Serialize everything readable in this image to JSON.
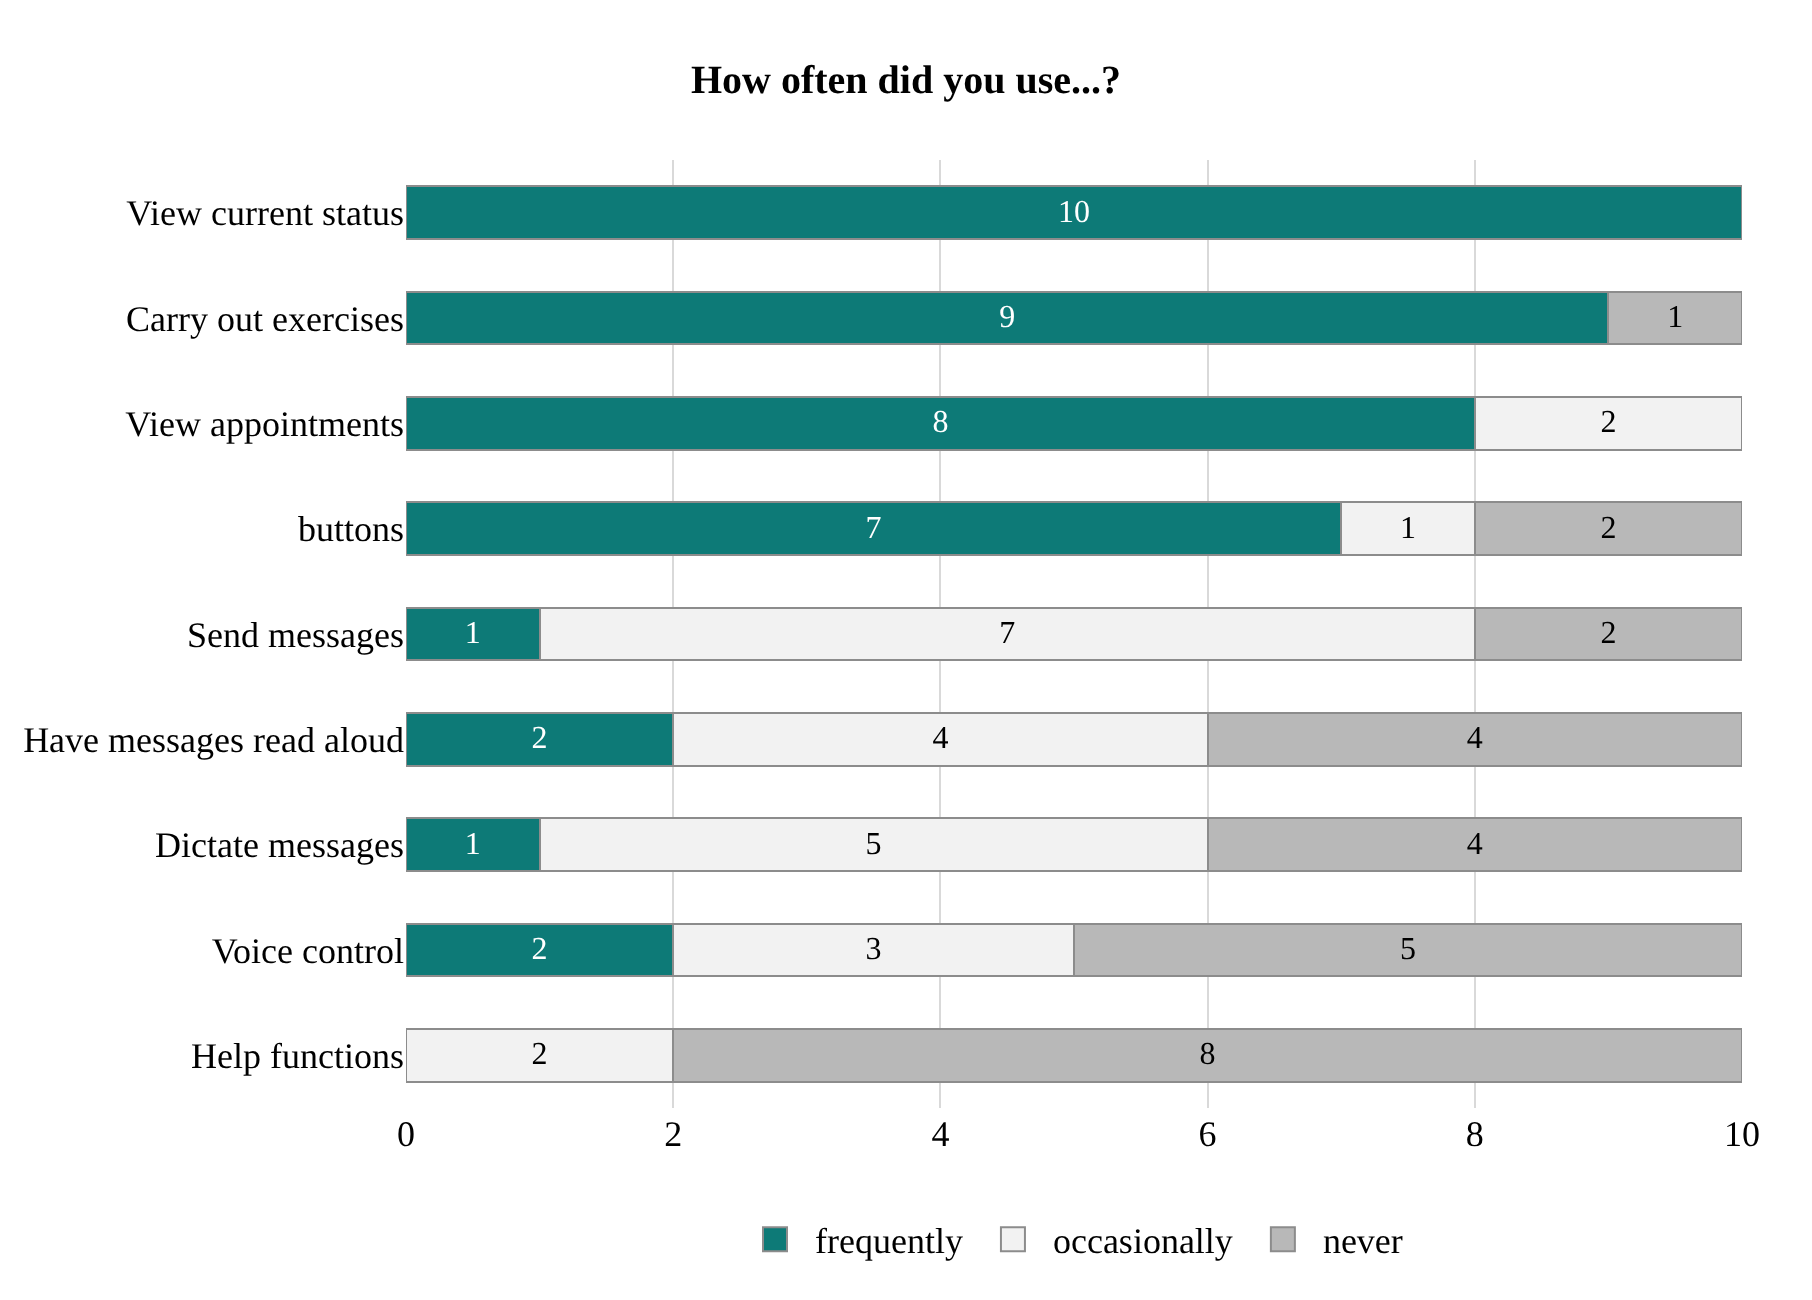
{
  "chart_data": {
    "type": "bar",
    "orientation": "horizontal",
    "stacked": true,
    "title": "How often did you use...?",
    "categories": [
      "View current status",
      "Carry out exercises",
      "View appointments",
      "buttons",
      "Send messages",
      "Have messages read aloud",
      "Dictate messages",
      "Voice control",
      "Help functions"
    ],
    "series": [
      {
        "name": "frequently",
        "color": "#0d7a77",
        "values": [
          10,
          9,
          8,
          7,
          1,
          2,
          1,
          2,
          null
        ]
      },
      {
        "name": "occasionally",
        "color": "#f2f2f2",
        "values": [
          null,
          null,
          2,
          1,
          7,
          4,
          5,
          3,
          2
        ]
      },
      {
        "name": "never",
        "color": "#b8b8b8",
        "values": [
          null,
          1,
          null,
          2,
          2,
          4,
          4,
          5,
          8
        ]
      }
    ],
    "xlim": [
      0,
      10
    ],
    "xticks": [
      0,
      2,
      4,
      6,
      8,
      10
    ],
    "grid": "x",
    "legend": "bottom",
    "data_labels": true
  }
}
